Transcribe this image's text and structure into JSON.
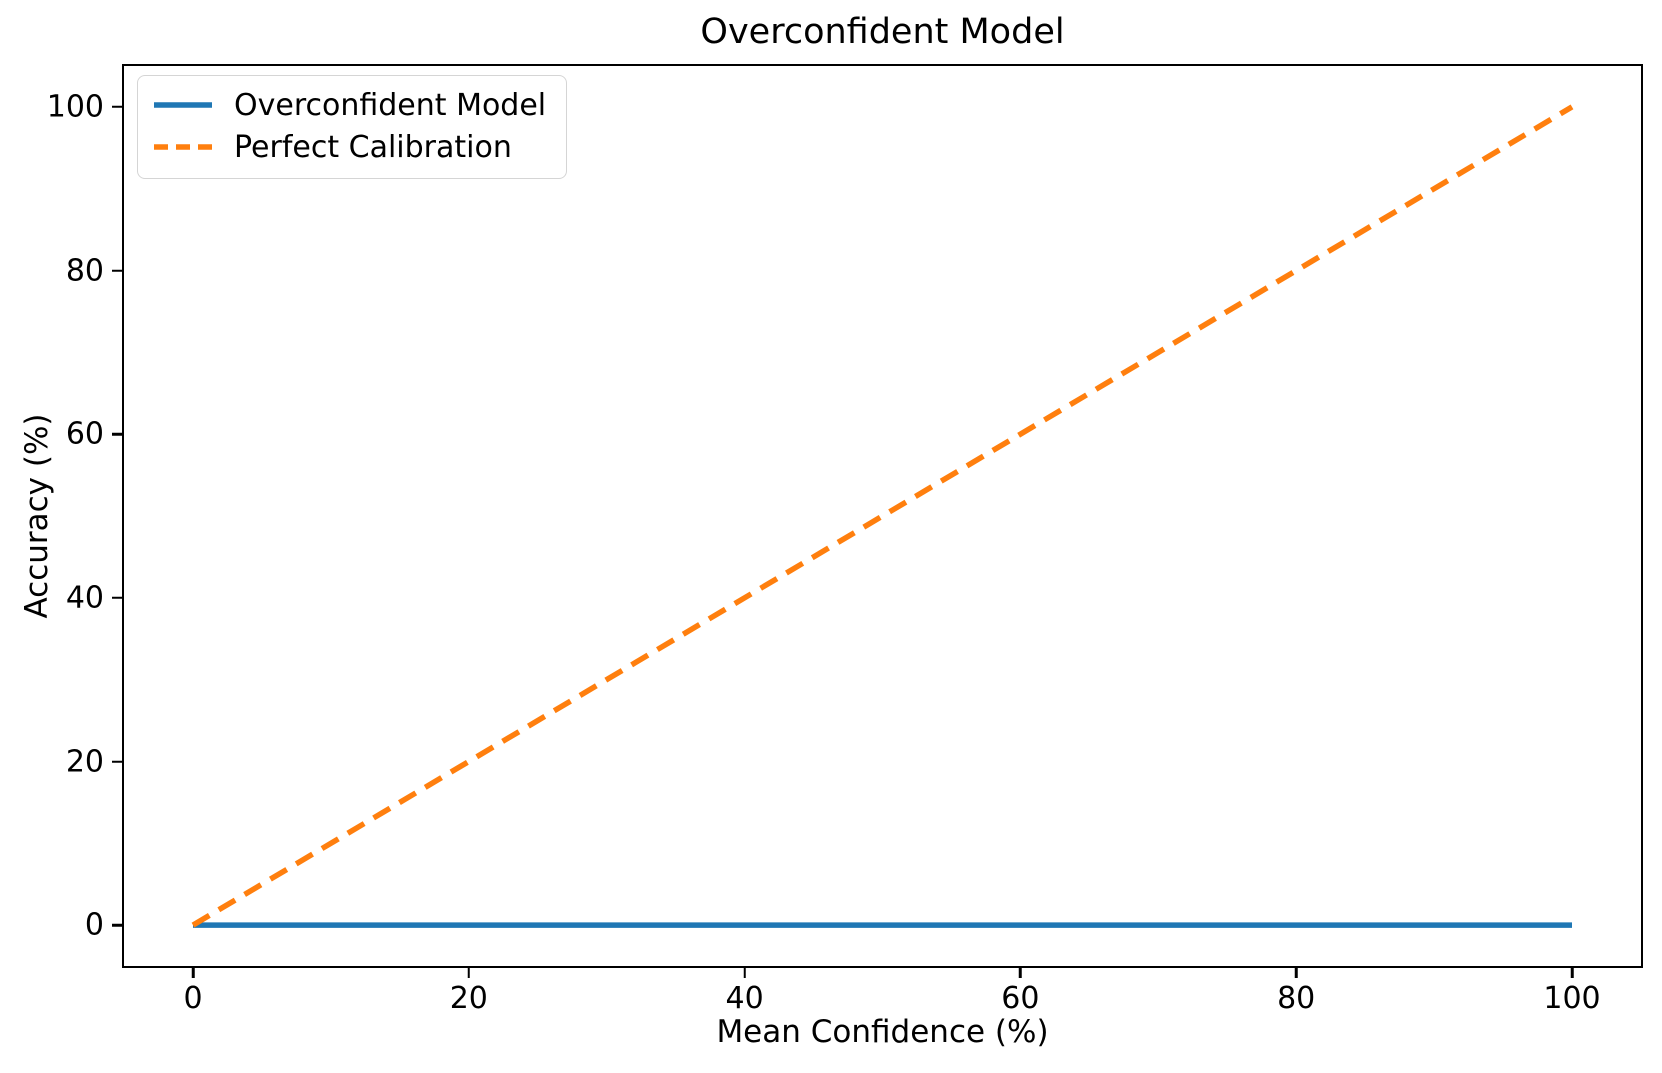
{
  "chart_data": {
    "type": "line",
    "title": "Overconfident Model",
    "xlabel": "Mean Confidence (%)",
    "ylabel": "Accuracy (%)",
    "xlim": [
      0,
      100
    ],
    "ylim": [
      0,
      100
    ],
    "axes_margin_pct": 5,
    "xticks": [
      0,
      20,
      40,
      60,
      80,
      100
    ],
    "yticks": [
      0,
      20,
      40,
      60,
      80,
      100
    ],
    "grid": false,
    "legend_position": "upper left",
    "background_color": "#ffffff",
    "spine_color": "#000000",
    "text_color": "#000000",
    "series": [
      {
        "name": "Overconfident Model",
        "color": "#1f77b4",
        "style": "solid",
        "x": [
          0,
          100
        ],
        "y": [
          0,
          0
        ]
      },
      {
        "name": "Perfect Calibration",
        "color": "#ff7f0e",
        "style": "dashed",
        "x": [
          0,
          100
        ],
        "y": [
          0,
          100
        ]
      }
    ]
  }
}
